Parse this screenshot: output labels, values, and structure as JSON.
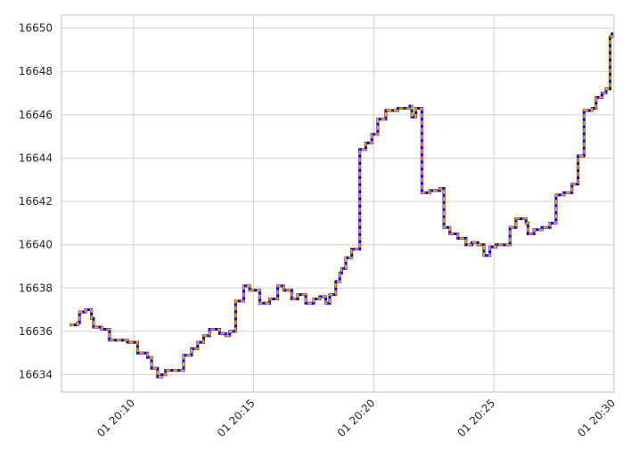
{
  "chart_data": {
    "type": "line",
    "title": "",
    "xlabel": "",
    "ylabel": "",
    "grid": true,
    "xlim": [
      "2000-01-01 20:07:00",
      "2000-01-01 20:30:00"
    ],
    "ylim": [
      16633.2,
      16650.6
    ],
    "y_ticks": [
      16634,
      16636,
      16638,
      16640,
      16642,
      16644,
      16646,
      16648,
      16650
    ],
    "x_ticks": [
      "2000-01-01 20:10",
      "2000-01-01 20:15",
      "2000-01-01 20:20",
      "2000-01-01 20:25",
      "2000-01-01 20:30"
    ],
    "x_tick_labels": [
      "01 20:10",
      "01 20:15",
      "01 20:20",
      "01 20:25",
      "01 20:30"
    ],
    "series": [
      {
        "color": "#0000cc",
        "style": "solid-step",
        "x": [
          "20:07:20",
          "20:07:40",
          "20:07:45",
          "20:08:00",
          "20:08:15",
          "20:08:20",
          "20:08:40",
          "20:09:00",
          "20:09:20",
          "20:09:45",
          "20:10:10",
          "20:10:35",
          "20:10:45",
          "20:11:00",
          "20:11:10",
          "20:11:20",
          "20:11:50",
          "20:12:05",
          "20:12:25",
          "20:12:40",
          "20:12:55",
          "20:13:10",
          "20:13:35",
          "20:13:50",
          "20:14:00",
          "20:14:15",
          "20:14:35",
          "20:14:50",
          "20:15:15",
          "20:15:40",
          "20:15:50",
          "20:16:00",
          "20:16:15",
          "20:16:35",
          "20:16:50",
          "20:17:10",
          "20:17:30",
          "20:17:45",
          "20:18:00",
          "20:18:10",
          "20:18:25",
          "20:18:35",
          "20:18:40",
          "20:18:50",
          "20:19:05",
          "20:19:25",
          "20:19:40",
          "20:19:55",
          "20:20:10",
          "20:20:30",
          "20:21:00",
          "20:21:20",
          "20:21:30",
          "20:21:35",
          "20:21:45",
          "20:22:00",
          "20:22:20",
          "20:22:45",
          "20:22:55",
          "20:23:10",
          "20:23:30",
          "20:23:50",
          "20:24:05",
          "20:24:20",
          "20:24:35",
          "20:24:50",
          "20:25:05",
          "20:25:20",
          "20:25:40",
          "20:25:55",
          "20:26:20",
          "20:26:25",
          "20:26:40",
          "20:27:00",
          "20:27:20",
          "20:27:35",
          "20:27:55",
          "20:28:15",
          "20:28:30",
          "20:28:45",
          "20:29:05",
          "20:29:15",
          "20:29:30",
          "20:29:40",
          "20:29:50",
          "20:29:55"
        ],
        "y": [
          16636.3,
          16636.4,
          16636.9,
          16637.0,
          16636.6,
          16636.2,
          16636.1,
          16635.6,
          16635.6,
          16635.5,
          16635.0,
          16634.8,
          16634.3,
          16633.9,
          16634.0,
          16634.2,
          16634.2,
          16634.9,
          16635.2,
          16635.5,
          16635.8,
          16636.1,
          16635.9,
          16635.8,
          16636.0,
          16637.4,
          16638.1,
          16637.9,
          16637.3,
          16637.5,
          16637.5,
          16638.1,
          16637.9,
          16637.5,
          16637.7,
          16637.3,
          16637.5,
          16637.6,
          16637.3,
          16637.7,
          16638.3,
          16638.7,
          16638.9,
          16639.4,
          16639.8,
          16644.4,
          16644.7,
          16645.1,
          16645.8,
          16646.2,
          16646.3,
          16646.3,
          16646.4,
          16645.9,
          16646.3,
          16642.4,
          16642.5,
          16642.6,
          16640.8,
          16640.5,
          16640.3,
          16640.0,
          16640.1,
          16640.0,
          16639.5,
          16639.9,
          16640.0,
          16640.0,
          16640.8,
          16641.2,
          16641.0,
          16640.5,
          16640.7,
          16640.8,
          16641.0,
          16642.3,
          16642.4,
          16642.8,
          16644.1,
          16646.2,
          16646.3,
          16646.8,
          16647.0,
          16647.2,
          16649.6,
          16649.8
        ]
      },
      {
        "color": "#ff9f1c",
        "style": "dashed-step",
        "x": [
          "20:07:20",
          "20:07:40",
          "20:07:45",
          "20:08:00",
          "20:08:15",
          "20:08:20",
          "20:08:40",
          "20:09:00",
          "20:09:20",
          "20:09:45",
          "20:10:10",
          "20:10:35",
          "20:10:45",
          "20:11:00",
          "20:11:10",
          "20:11:20",
          "20:11:50",
          "20:12:05",
          "20:12:25",
          "20:12:40",
          "20:12:55",
          "20:13:10",
          "20:13:35",
          "20:13:50",
          "20:14:00",
          "20:14:15",
          "20:14:35",
          "20:14:50",
          "20:15:15",
          "20:15:40",
          "20:15:50",
          "20:16:00",
          "20:16:15",
          "20:16:35",
          "20:16:50",
          "20:17:10",
          "20:17:30",
          "20:17:45",
          "20:18:00",
          "20:18:10",
          "20:18:25",
          "20:18:35",
          "20:18:40",
          "20:18:50",
          "20:19:05",
          "20:19:25",
          "20:19:40",
          "20:19:55",
          "20:20:10",
          "20:20:30",
          "20:21:00",
          "20:21:20",
          "20:21:30",
          "20:21:35",
          "20:21:45",
          "20:22:00",
          "20:22:20",
          "20:22:45",
          "20:22:55",
          "20:23:10",
          "20:23:30",
          "20:23:50",
          "20:24:05",
          "20:24:20",
          "20:24:35",
          "20:24:50",
          "20:25:05",
          "20:25:20",
          "20:25:40",
          "20:25:55",
          "20:26:20",
          "20:26:25",
          "20:26:40",
          "20:27:00",
          "20:27:20",
          "20:27:35",
          "20:27:55",
          "20:28:15",
          "20:28:30",
          "20:28:45",
          "20:29:05",
          "20:29:15",
          "20:29:30",
          "20:29:40",
          "20:29:50",
          "20:29:55"
        ],
        "y": [
          16636.3,
          16636.4,
          16636.9,
          16637.0,
          16636.6,
          16636.2,
          16636.1,
          16635.6,
          16635.6,
          16635.5,
          16635.0,
          16634.8,
          16634.3,
          16633.9,
          16634.0,
          16634.2,
          16634.2,
          16634.9,
          16635.2,
          16635.5,
          16635.8,
          16636.1,
          16635.9,
          16635.8,
          16636.0,
          16637.4,
          16638.1,
          16637.9,
          16637.3,
          16637.5,
          16637.5,
          16638.1,
          16637.9,
          16637.5,
          16637.7,
          16637.3,
          16637.5,
          16637.6,
          16637.3,
          16637.7,
          16638.3,
          16638.7,
          16638.9,
          16639.4,
          16639.8,
          16644.4,
          16644.7,
          16645.1,
          16645.8,
          16646.2,
          16646.3,
          16646.3,
          16646.4,
          16645.9,
          16646.3,
          16642.4,
          16642.5,
          16642.6,
          16640.8,
          16640.5,
          16640.3,
          16640.0,
          16640.1,
          16640.0,
          16639.5,
          16639.9,
          16640.0,
          16640.0,
          16640.8,
          16641.2,
          16641.0,
          16640.5,
          16640.7,
          16640.8,
          16641.0,
          16642.3,
          16642.4,
          16642.8,
          16644.1,
          16646.2,
          16646.3,
          16646.8,
          16647.0,
          16647.2,
          16649.6,
          16649.8
        ]
      }
    ]
  }
}
